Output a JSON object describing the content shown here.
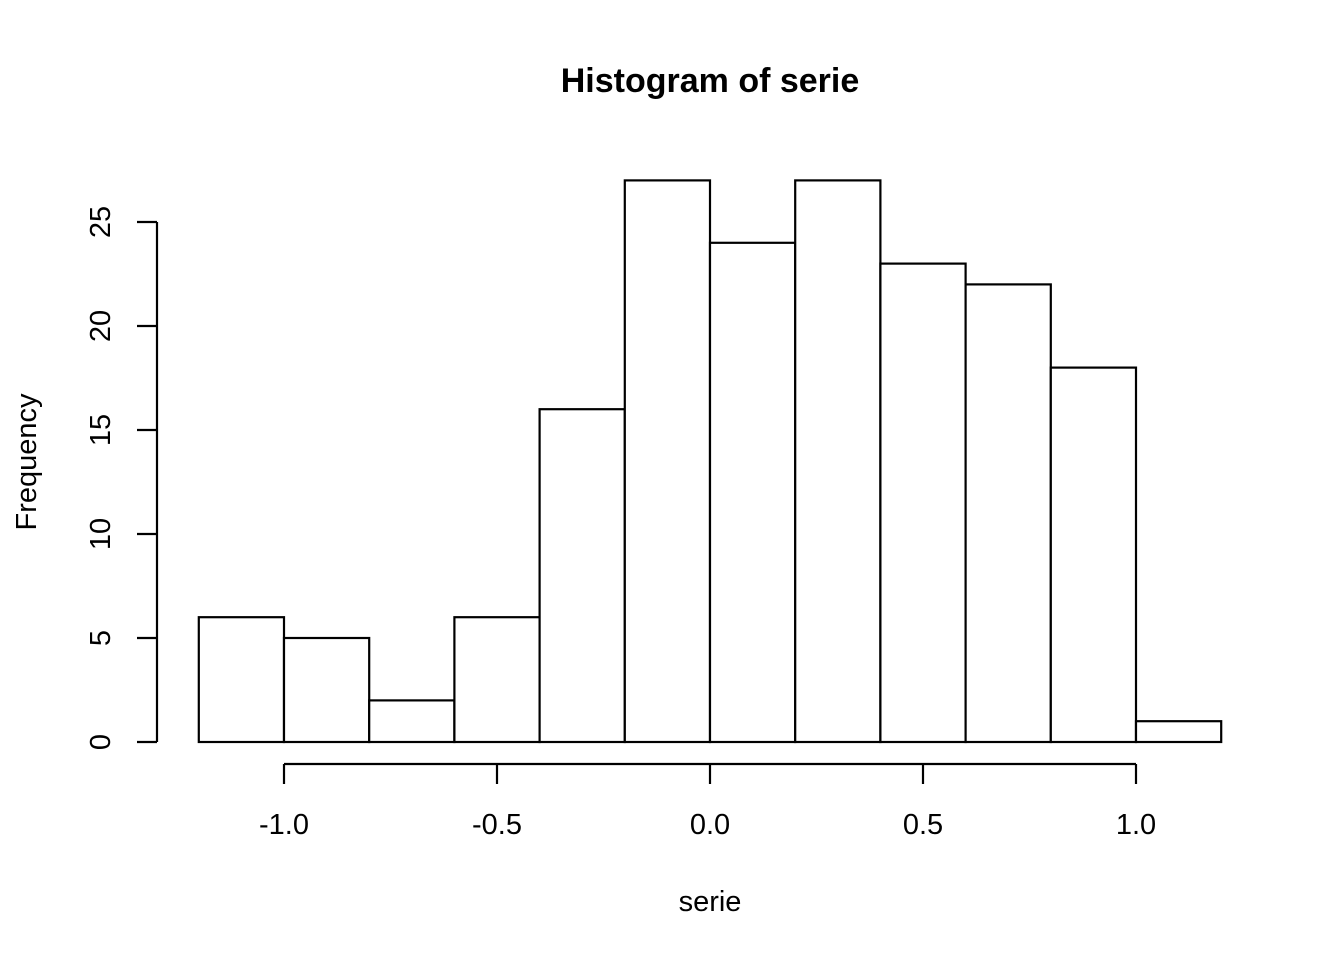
{
  "chart_data": {
    "type": "bar",
    "title": "Histogram of serie",
    "xlabel": "serie",
    "ylabel": "Frequency",
    "bins": [
      {
        "start": -1.2,
        "end": -1.0,
        "count": 6
      },
      {
        "start": -1.0,
        "end": -0.8,
        "count": 5
      },
      {
        "start": -0.8,
        "end": -0.6,
        "count": 2
      },
      {
        "start": -0.6,
        "end": -0.4,
        "count": 6
      },
      {
        "start": -0.4,
        "end": -0.2,
        "count": 16
      },
      {
        "start": -0.2,
        "end": 0.0,
        "count": 27
      },
      {
        "start": 0.0,
        "end": 0.2,
        "count": 24
      },
      {
        "start": 0.2,
        "end": 0.4,
        "count": 27
      },
      {
        "start": 0.4,
        "end": 0.6,
        "count": 23
      },
      {
        "start": 0.6,
        "end": 0.8,
        "count": 22
      },
      {
        "start": 0.8,
        "end": 1.0,
        "count": 18
      },
      {
        "start": 1.0,
        "end": 1.2,
        "count": 1
      }
    ],
    "xlim": [
      -1.2,
      1.2
    ],
    "ylim": [
      0,
      27
    ],
    "x_ticks": [
      {
        "value": -1.0,
        "label": "-1.0"
      },
      {
        "value": -0.5,
        "label": "-0.5"
      },
      {
        "value": 0.0,
        "label": "0.0"
      },
      {
        "value": 0.5,
        "label": "0.5"
      },
      {
        "value": 1.0,
        "label": "1.0"
      }
    ],
    "y_ticks": [
      {
        "value": 0,
        "label": "0"
      },
      {
        "value": 5,
        "label": "5"
      },
      {
        "value": 10,
        "label": "10"
      },
      {
        "value": 15,
        "label": "15"
      },
      {
        "value": 20,
        "label": "20"
      },
      {
        "value": 25,
        "label": "25"
      }
    ],
    "grid": false,
    "colors": {
      "bar_fill": "#ffffff",
      "bar_stroke": "#000000"
    }
  }
}
